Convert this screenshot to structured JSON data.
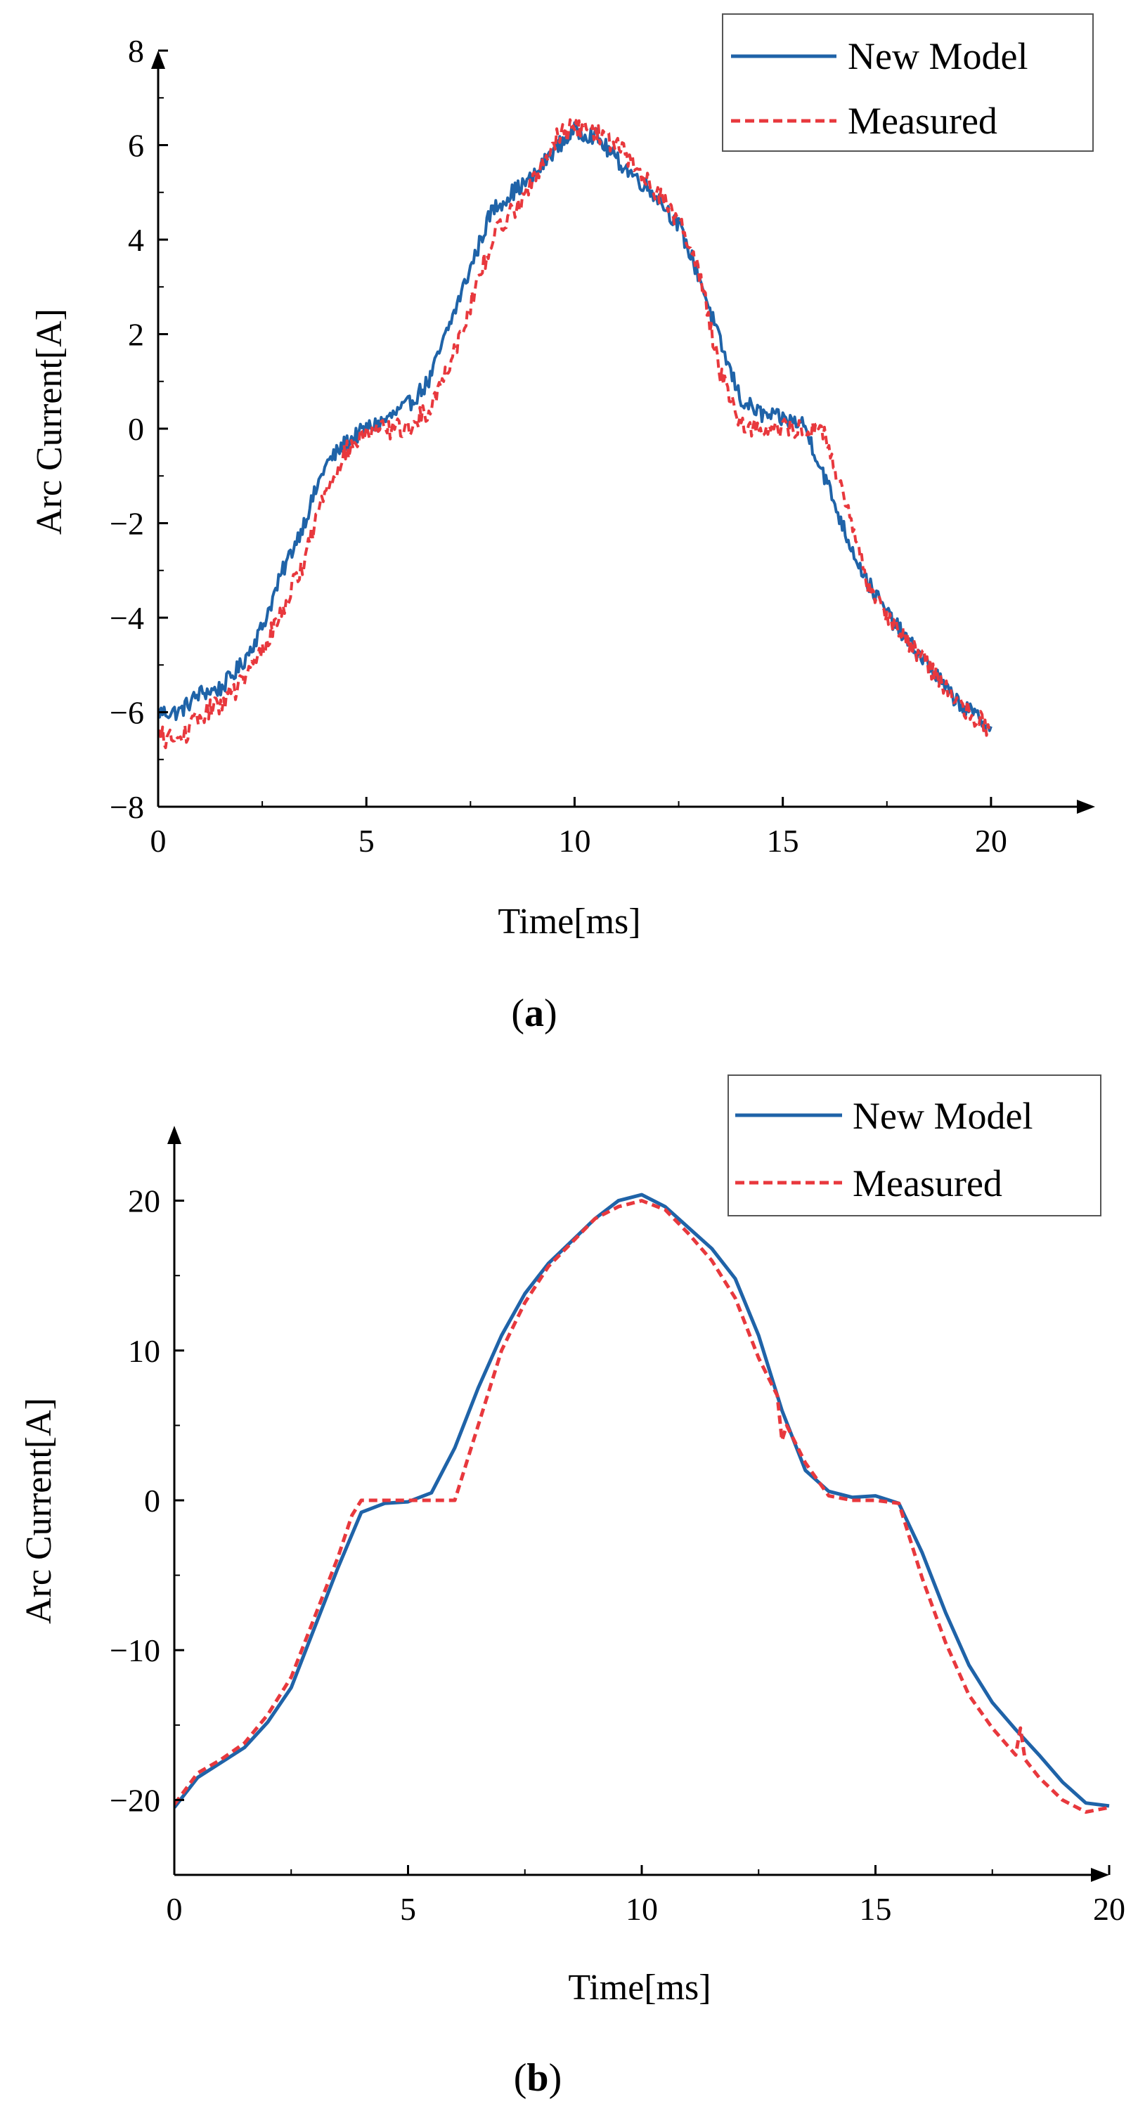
{
  "chart_data": [
    {
      "type": "line",
      "panel_label": "a",
      "title": "",
      "xlabel": "Time[ms]",
      "ylabel": "Arc Current[A]",
      "xlim": [
        0,
        22.5
      ],
      "ylim": [
        -8,
        8
      ],
      "xticks": [
        0,
        5,
        10,
        15,
        20
      ],
      "yticks": [
        -8,
        -6,
        -4,
        -2,
        0,
        2,
        4,
        6,
        8
      ],
      "xtick_labels": [
        "0",
        "5",
        "10",
        "15",
        "20"
      ],
      "ytick_labels": [
        "−8",
        "−6",
        "−4",
        "−2",
        "0",
        "2",
        "4",
        "6",
        "8"
      ],
      "grid": false,
      "legend_position": "top-right",
      "series": [
        {
          "name": "New Model",
          "color": "#1f63a8",
          "style": "solid",
          "noise": 0.18,
          "x": [
            0,
            0.5,
            1,
            1.5,
            2,
            2.5,
            3,
            3.5,
            4,
            4.5,
            5,
            5.5,
            6,
            6.5,
            7,
            7.5,
            8,
            8.5,
            9,
            9.5,
            10,
            10.5,
            11,
            11.5,
            12,
            12.5,
            13,
            13.5,
            14,
            14.5,
            15,
            15.5,
            16,
            16.5,
            17,
            17.5,
            18,
            18.5,
            19,
            19.5,
            20
          ],
          "values": [
            -6.0,
            -6.0,
            -5.6,
            -5.5,
            -5.0,
            -4.2,
            -3.0,
            -2.0,
            -0.8,
            -0.3,
            0.0,
            0.2,
            0.5,
            1.0,
            2.2,
            3.4,
            4.6,
            5.0,
            5.3,
            5.9,
            6.3,
            6.2,
            5.7,
            5.3,
            4.9,
            4.3,
            3.2,
            1.8,
            0.6,
            0.3,
            0.2,
            0.1,
            -1.0,
            -2.2,
            -3.2,
            -3.9,
            -4.5,
            -5.0,
            -5.6,
            -6.0,
            -6.3
          ]
        },
        {
          "name": "Measured",
          "color": "#e8383d",
          "style": "dashed",
          "noise": 0.22,
          "x": [
            0,
            0.5,
            1,
            1.5,
            2,
            2.5,
            3,
            3.5,
            4,
            4.5,
            5,
            5.5,
            6,
            6.5,
            7,
            7.5,
            8,
            8.5,
            9,
            9.5,
            10,
            10.5,
            11,
            11.5,
            12,
            12.5,
            13,
            13.5,
            14,
            14.5,
            15,
            15.5,
            16,
            16.5,
            17,
            17.5,
            18,
            18.5,
            19,
            19.5,
            20
          ],
          "values": [
            -6.5,
            -6.6,
            -6.1,
            -5.8,
            -5.4,
            -4.7,
            -3.8,
            -2.8,
            -1.3,
            -0.5,
            -0.1,
            0.0,
            0.0,
            0.4,
            1.4,
            2.6,
            4.0,
            4.6,
            5.2,
            6.1,
            6.4,
            6.3,
            6.0,
            5.5,
            5.0,
            4.4,
            3.3,
            1.2,
            0.1,
            0.0,
            0.0,
            0.0,
            -0.1,
            -1.6,
            -3.2,
            -3.9,
            -4.5,
            -5.0,
            -5.6,
            -6.0,
            -6.4
          ]
        }
      ]
    },
    {
      "type": "line",
      "panel_label": "b",
      "title": "",
      "xlabel": "Time[ms]",
      "ylabel": "Arc Current[A]",
      "xlim": [
        0,
        20
      ],
      "ylim": [
        -25,
        25
      ],
      "xticks": [
        0,
        5,
        10,
        15,
        20
      ],
      "yticks": [
        -20,
        -10,
        0,
        10,
        20
      ],
      "xtick_labels": [
        "0",
        "5",
        "10",
        "15",
        "20"
      ],
      "ytick_labels": [
        "−20",
        "−10",
        "0",
        "10",
        "20"
      ],
      "grid": false,
      "legend_position": "top-right",
      "series": [
        {
          "name": "New Model",
          "color": "#1f63a8",
          "style": "solid",
          "noise": 0,
          "x": [
            0,
            0.5,
            1,
            1.5,
            2,
            2.5,
            3,
            3.5,
            4,
            4.5,
            5,
            5.5,
            6,
            6.5,
            7,
            7.5,
            8,
            8.5,
            9,
            9.5,
            10,
            10.5,
            11,
            11.5,
            12,
            12.5,
            13,
            13.5,
            14,
            14.5,
            15,
            15.5,
            16,
            16.5,
            17,
            17.5,
            18,
            18.5,
            19,
            19.5,
            20
          ],
          "values": [
            -20.5,
            -18.5,
            -17.5,
            -16.5,
            -14.8,
            -12.5,
            -8.5,
            -4.5,
            -0.8,
            -0.2,
            -0.1,
            0.5,
            3.5,
            7.5,
            11.0,
            13.8,
            15.8,
            17.3,
            18.8,
            20.0,
            20.4,
            19.6,
            18.2,
            16.8,
            14.8,
            11.0,
            6.0,
            2.0,
            0.6,
            0.2,
            0.3,
            -0.2,
            -3.5,
            -7.5,
            -11.0,
            -13.5,
            -15.3,
            -17.0,
            -18.8,
            -20.2,
            -20.4
          ]
        },
        {
          "name": "Measured",
          "color": "#e8383d",
          "style": "dashed",
          "noise": 0,
          "x": [
            0,
            0.5,
            1,
            1.5,
            2,
            2.5,
            3,
            3.5,
            3.8,
            4,
            4.5,
            5,
            5.5,
            6,
            6.5,
            7,
            7.5,
            8,
            8.5,
            9,
            9.5,
            10,
            10.5,
            11,
            11.5,
            12,
            12.5,
            12.9,
            13.0,
            13.1,
            13.5,
            14,
            14.5,
            15,
            15.5,
            16,
            16.5,
            17,
            17.5,
            18,
            18.1,
            18.2,
            18.5,
            19,
            19.5,
            20
          ],
          "values": [
            -20.3,
            -18.2,
            -17.3,
            -16.2,
            -14.3,
            -11.8,
            -7.8,
            -3.8,
            -1.0,
            0.0,
            0.0,
            0.0,
            0.0,
            0.0,
            5.0,
            10.0,
            13.2,
            15.6,
            17.2,
            18.8,
            19.6,
            20.0,
            19.4,
            17.8,
            16.0,
            13.5,
            9.5,
            7.0,
            4.0,
            5.0,
            2.5,
            0.3,
            0.0,
            0.0,
            -0.2,
            -5.2,
            -9.5,
            -13.0,
            -15.2,
            -17.0,
            -15.2,
            -17.3,
            -18.5,
            -20.0,
            -20.8,
            -20.5
          ]
        }
      ]
    }
  ]
}
